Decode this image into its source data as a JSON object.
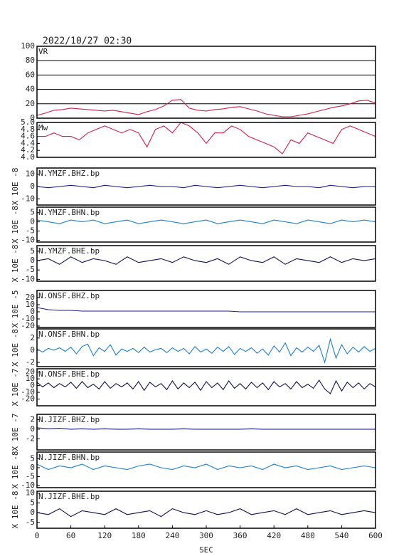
{
  "header": {
    "title": "2022/10/27 02:30"
  },
  "chart_data": [
    {
      "type": "line",
      "title": "VR",
      "color": "#d0204a",
      "grid": true,
      "x": [
        0,
        15,
        30,
        45,
        60,
        75,
        90,
        105,
        120,
        135,
        150,
        165,
        180,
        195,
        210,
        225,
        240,
        255,
        270,
        285,
        300,
        315,
        330,
        345,
        360,
        375,
        390,
        405,
        420,
        435,
        450,
        465,
        480,
        495,
        510,
        525,
        540,
        555,
        570,
        585,
        600
      ],
      "values": [
        4,
        7,
        11,
        12,
        14,
        13,
        12,
        11,
        10,
        11,
        9,
        7,
        5,
        9,
        12,
        17,
        25,
        26,
        14,
        11,
        10,
        12,
        13,
        15,
        16,
        13,
        10,
        6,
        4,
        2,
        2,
        4,
        6,
        9,
        12,
        15,
        17,
        20,
        24,
        25,
        21
      ],
      "xlim": [
        0,
        600
      ],
      "ylim": [
        0,
        100
      ],
      "yticks": [
        0,
        20,
        40,
        60,
        80,
        100
      ]
    },
    {
      "type": "line",
      "title": "Mw",
      "color": "#d0204a",
      "x": [
        0,
        15,
        30,
        45,
        60,
        75,
        90,
        105,
        120,
        135,
        150,
        165,
        180,
        195,
        210,
        225,
        240,
        255,
        270,
        285,
        300,
        315,
        330,
        345,
        360,
        375,
        390,
        405,
        420,
        435,
        450,
        465,
        480,
        495,
        510,
        525,
        540,
        555,
        570,
        585,
        600
      ],
      "values": [
        4.6,
        4.6,
        4.7,
        4.6,
        4.6,
        4.5,
        4.7,
        4.8,
        4.9,
        4.8,
        4.7,
        4.8,
        4.7,
        4.3,
        4.8,
        4.9,
        4.7,
        5.0,
        4.9,
        4.7,
        4.4,
        4.7,
        4.7,
        4.9,
        4.8,
        4.6,
        4.5,
        4.4,
        4.3,
        4.1,
        4.5,
        4.4,
        4.7,
        4.6,
        4.5,
        4.4,
        4.8,
        4.9,
        4.8,
        4.7,
        4.6
      ],
      "xlim": [
        0,
        600
      ],
      "ylim": [
        4.0,
        5.0
      ],
      "yticks": [
        {
          "value": 4,
          "label": "4.0"
        },
        4.2,
        4.4,
        4.6,
        4.8,
        {
          "value": 5,
          "label": "5.0"
        }
      ]
    },
    {
      "type": "line",
      "title": "N.YMZF.BHZ.bp",
      "ylabel": "X 10E -8",
      "color": "#1a1a8c",
      "x": [
        0,
        20,
        40,
        60,
        80,
        100,
        120,
        140,
        160,
        180,
        200,
        220,
        240,
        260,
        280,
        300,
        320,
        340,
        360,
        380,
        400,
        420,
        440,
        460,
        480,
        500,
        520,
        540,
        560,
        580,
        600
      ],
      "values": [
        0,
        -1,
        0,
        1,
        0,
        -1,
        1,
        0,
        -1,
        0,
        1,
        0,
        0,
        -1,
        1,
        0,
        -1,
        0,
        1,
        0,
        -1,
        0,
        1,
        0,
        0,
        -1,
        1,
        0,
        -1,
        0,
        0
      ],
      "xlim": [
        0,
        600
      ],
      "ylim": [
        -15,
        15
      ],
      "yticks": [
        -10,
        0,
        10
      ]
    },
    {
      "type": "line",
      "title": "N.YMZF.BHN.bp",
      "ylabel": "X 10E -8",
      "color": "#1e7fd0",
      "x": [
        0,
        20,
        40,
        60,
        80,
        100,
        120,
        140,
        160,
        180,
        200,
        220,
        240,
        260,
        280,
        300,
        320,
        340,
        360,
        380,
        400,
        420,
        440,
        460,
        480,
        500,
        520,
        540,
        560,
        580,
        600
      ],
      "values": [
        1,
        0,
        -1,
        1,
        0,
        1,
        -1,
        0,
        1,
        -1,
        0,
        1,
        0,
        -1,
        0,
        1,
        -1,
        0,
        1,
        0,
        -1,
        1,
        0,
        -1,
        1,
        0,
        -1,
        1,
        0,
        1,
        0
      ],
      "xlim": [
        0,
        600
      ],
      "ylim": [
        -11,
        8
      ],
      "yticks": [
        -10,
        -5,
        0,
        5
      ]
    },
    {
      "type": "line",
      "title": "N.YMZF.BHE.bp",
      "ylabel": "X 10E -8",
      "color": "#101050",
      "x": [
        0,
        20,
        40,
        60,
        80,
        100,
        120,
        140,
        160,
        180,
        200,
        220,
        240,
        260,
        280,
        300,
        320,
        340,
        360,
        380,
        400,
        420,
        440,
        460,
        480,
        500,
        520,
        540,
        560,
        580,
        600
      ],
      "values": [
        0,
        1,
        -2,
        2,
        -1,
        1,
        0,
        -2,
        2,
        -1,
        0,
        1,
        -1,
        2,
        0,
        -1,
        1,
        -2,
        2,
        0,
        -1,
        2,
        -2,
        1,
        0,
        -1,
        2,
        -1,
        1,
        0,
        1
      ],
      "xlim": [
        0,
        600
      ],
      "ylim": [
        -11,
        8
      ],
      "yticks": [
        -10,
        -5,
        0,
        5
      ]
    },
    {
      "type": "line",
      "title": "N.ONSF.BHZ.bp",
      "ylabel": "X 10E -5",
      "color": "#1a1a8c",
      "x": [
        0,
        20,
        40,
        60,
        80,
        100,
        120,
        140,
        160,
        180,
        200,
        220,
        240,
        260,
        280,
        300,
        320,
        340,
        360,
        380,
        400,
        420,
        440,
        460,
        480,
        500,
        520,
        540,
        560,
        580,
        600
      ],
      "values": [
        6,
        3,
        2,
        2,
        1,
        1,
        1,
        1,
        1,
        1,
        1,
        1,
        1,
        1,
        1,
        1,
        1,
        1,
        0,
        0,
        0,
        0,
        0,
        0,
        0,
        0,
        0,
        0,
        0,
        0,
        0
      ],
      "xlim": [
        0,
        600
      ],
      "ylim": [
        -22,
        30
      ],
      "yticks": [
        -20,
        -10,
        0,
        10,
        20
      ]
    },
    {
      "type": "line",
      "title": "N.ONSF.BHN.bp",
      "ylabel": "X 10E -8",
      "color": "#1e7fd0",
      "x": [
        0,
        10,
        20,
        30,
        40,
        50,
        60,
        70,
        80,
        90,
        100,
        110,
        120,
        130,
        140,
        150,
        160,
        170,
        180,
        190,
        200,
        210,
        220,
        230,
        240,
        250,
        260,
        270,
        280,
        290,
        300,
        310,
        320,
        330,
        340,
        350,
        360,
        370,
        380,
        390,
        400,
        410,
        420,
        430,
        440,
        450,
        460,
        470,
        480,
        490,
        500,
        510,
        520,
        530,
        540,
        550,
        560,
        570,
        580,
        590,
        600
      ],
      "values": [
        0.2,
        -0.3,
        0.3,
        0,
        0.4,
        -0.2,
        0.5,
        -0.6,
        0.6,
        1.0,
        -0.9,
        0.4,
        -0.2,
        0.9,
        -0.8,
        0.2,
        -0.2,
        0.3,
        -0.4,
        0.5,
        -0.3,
        0.1,
        0.3,
        -0.4,
        0.4,
        -0.2,
        0.3,
        -0.6,
        0.6,
        -0.3,
        0.2,
        -0.5,
        0.5,
        -0.2,
        0.6,
        -0.7,
        0.3,
        -0.2,
        0.4,
        -0.5,
        0.2,
        -0.8,
        0.7,
        -0.3,
        1.2,
        -0.9,
        0.4,
        -0.3,
        0.5,
        -0.2,
        0.8,
        -2.0,
        1.8,
        -1.3,
        0.9,
        -0.6,
        0.5,
        -0.3,
        0.6,
        -0.2,
        0.3
      ],
      "xlim": [
        0,
        600
      ],
      "ylim": [
        -2.7,
        3.5
      ],
      "yticks": [
        -2,
        0,
        2
      ]
    },
    {
      "type": "line",
      "title": "N.ONSF.BHE.bp",
      "ylabel": "X 10E -7",
      "color": "#101050",
      "x": [
        0,
        10,
        20,
        30,
        40,
        50,
        60,
        70,
        80,
        90,
        100,
        110,
        120,
        130,
        140,
        150,
        160,
        170,
        180,
        190,
        200,
        210,
        220,
        230,
        240,
        250,
        260,
        270,
        280,
        290,
        300,
        310,
        320,
        330,
        340,
        350,
        360,
        370,
        380,
        390,
        400,
        410,
        420,
        430,
        440,
        450,
        460,
        470,
        480,
        490,
        500,
        510,
        520,
        530,
        540,
        550,
        560,
        570,
        580,
        590,
        600
      ],
      "values": [
        5,
        -2,
        4,
        -3,
        3,
        -2,
        5,
        -4,
        6,
        -3,
        2,
        -5,
        6,
        -4,
        3,
        -2,
        4,
        -5,
        6,
        -7,
        5,
        -2,
        3,
        -6,
        7,
        -5,
        4,
        -3,
        5,
        -7,
        6,
        -3,
        4,
        -6,
        7,
        -4,
        3,
        -5,
        5,
        -3,
        4,
        -6,
        6,
        -2,
        3,
        -5,
        6,
        -3,
        2,
        -4,
        8,
        -5,
        -12,
        7,
        -8,
        5,
        -3,
        4,
        -5,
        3,
        -2
      ],
      "xlim": [
        0,
        600
      ],
      "ylim": [
        -30,
        25
      ],
      "yticks": [
        -20,
        -10,
        0,
        10,
        20
      ]
    },
    {
      "type": "line",
      "title": "N.JIZF.BHZ.bp",
      "ylabel": "X 10E -7",
      "color": "#1a1a8c",
      "x": [
        0,
        20,
        40,
        60,
        80,
        100,
        120,
        140,
        160,
        180,
        200,
        220,
        240,
        260,
        280,
        300,
        320,
        340,
        360,
        380,
        400,
        420,
        440,
        460,
        480,
        500,
        520,
        540,
        560,
        580,
        600
      ],
      "values": [
        0.3,
        0.1,
        0.2,
        0,
        0.1,
        0,
        0.1,
        0,
        0,
        0.1,
        0,
        0,
        0,
        0.1,
        0,
        0,
        0,
        0,
        0,
        0.1,
        0,
        0,
        0,
        0,
        0,
        0,
        0,
        0,
        0,
        0,
        0
      ],
      "xlim": [
        0,
        600
      ],
      "ylim": [
        -4.3,
        3.1
      ],
      "yticks": [
        -2,
        0,
        2
      ]
    },
    {
      "type": "line",
      "title": "N.JIZF.BHN.bp",
      "ylabel": "X 10E -8",
      "color": "#1e7fd0",
      "x": [
        0,
        20,
        40,
        60,
        80,
        100,
        120,
        140,
        160,
        180,
        200,
        220,
        240,
        260,
        280,
        300,
        320,
        340,
        360,
        380,
        400,
        420,
        440,
        460,
        480,
        500,
        520,
        540,
        560,
        580,
        600
      ],
      "values": [
        2,
        -1,
        1,
        0,
        2,
        -1,
        1,
        0,
        -1,
        1,
        2,
        0,
        -1,
        1,
        0,
        2,
        -1,
        1,
        0,
        1,
        -1,
        2,
        0,
        1,
        -1,
        0,
        1,
        -1,
        0,
        1,
        0
      ],
      "xlim": [
        0,
        600
      ],
      "ylim": [
        -11.2,
        8.8
      ],
      "yticks": [
        -10,
        -5,
        0,
        5
      ]
    },
    {
      "type": "line",
      "title": "N.JIZF.BHE.bp",
      "ylabel": "X 10E -8",
      "color": "#101050",
      "x": [
        0,
        20,
        40,
        60,
        80,
        100,
        120,
        140,
        160,
        180,
        200,
        220,
        240,
        260,
        280,
        300,
        320,
        340,
        360,
        380,
        400,
        420,
        440,
        460,
        480,
        500,
        520,
        540,
        560,
        580,
        600
      ],
      "values": [
        0,
        -1,
        2,
        -2,
        1,
        0,
        -1,
        2,
        -1,
        0,
        1,
        -2,
        2,
        0,
        -1,
        1,
        -1,
        0,
        2,
        -1,
        0,
        1,
        -1,
        2,
        -1,
        0,
        1,
        -1,
        0,
        1,
        0
      ],
      "xlim": [
        0,
        600
      ],
      "ylim": [
        -8,
        11
      ],
      "yticks": [
        -5,
        0,
        5,
        10
      ],
      "xticks": [
        0,
        60,
        120,
        180,
        240,
        300,
        360,
        420,
        480,
        540,
        600
      ],
      "xlabel": "SEC"
    }
  ]
}
